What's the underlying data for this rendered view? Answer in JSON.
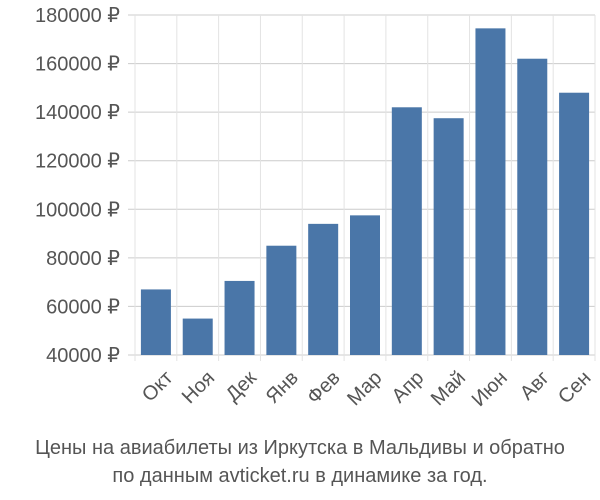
{
  "caption": {
    "line1": "Цены на авиабилеты из Иркутска в Мальдивы и обратно",
    "line2": "по данным avticket.ru в динамике за год."
  },
  "chart_data": {
    "type": "bar",
    "title": "",
    "xlabel": "",
    "ylabel": "",
    "currency_suffix": " ₽",
    "categories": [
      "Окт",
      "Ноя",
      "Дек",
      "Янв",
      "Фев",
      "Мар",
      "Апр",
      "Май",
      "Июн",
      "Авг",
      "Сен"
    ],
    "values": [
      67000,
      55000,
      70500,
      85000,
      94000,
      97500,
      142000,
      137500,
      174500,
      162000,
      148000
    ],
    "ylim": [
      40000,
      180000
    ],
    "yticks": [
      40000,
      60000,
      80000,
      100000,
      120000,
      140000,
      160000,
      180000
    ],
    "ytick_labels": [
      "40000 ₽",
      "60000 ₽",
      "80000 ₽",
      "100000 ₽",
      "120000 ₽",
      "140000 ₽",
      "160000 ₽",
      "180000 ₽"
    ],
    "grid": true,
    "bar_color": "#4a76a8",
    "legend": "none"
  }
}
